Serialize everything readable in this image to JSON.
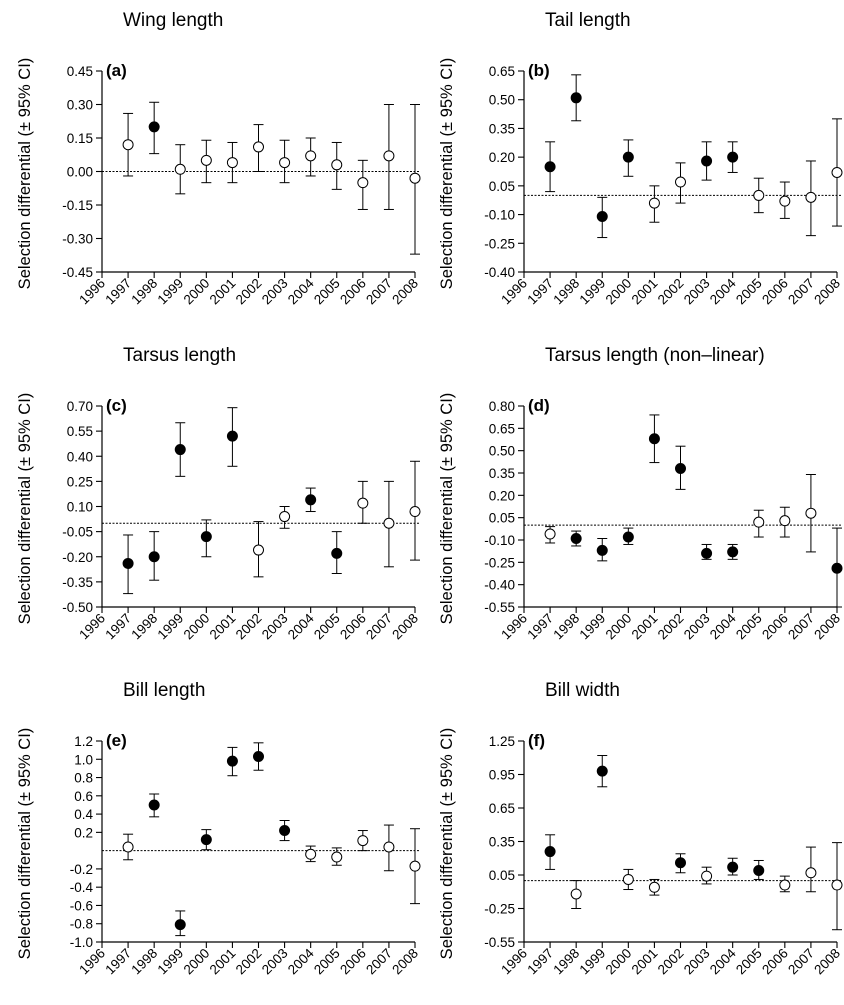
{
  "ylabel": "Selection differential (± 95% CI)",
  "chart_data": [
    {
      "type": "scatter",
      "panel": "(a)",
      "title": "Wing length",
      "ylabel": "Selection differential (± 95% CI)",
      "ylim": [
        -0.45,
        0.45
      ],
      "yticks": [
        -0.45,
        -0.3,
        -0.15,
        0.0,
        0.15,
        0.3,
        0.45
      ],
      "ytick_labels": [
        "-0.45",
        "-0.30",
        "-0.15",
        "0.00",
        "0.15",
        "0.30",
        "0.45"
      ],
      "xticks": [
        "1996",
        "1997",
        "1998",
        "1999",
        "2000",
        "2001",
        "2002",
        "2003",
        "2004",
        "2005",
        "2006",
        "2007",
        "2008"
      ],
      "reference_line": 0,
      "points": [
        {
          "x": 1997,
          "y": 0.12,
          "lo": -0.02,
          "hi": 0.26,
          "filled": false
        },
        {
          "x": 1998,
          "y": 0.2,
          "lo": 0.08,
          "hi": 0.31,
          "filled": true
        },
        {
          "x": 1999,
          "y": 0.01,
          "lo": -0.1,
          "hi": 0.12,
          "filled": false
        },
        {
          "x": 2000,
          "y": 0.05,
          "lo": -0.05,
          "hi": 0.14,
          "filled": false
        },
        {
          "x": 2001,
          "y": 0.04,
          "lo": -0.05,
          "hi": 0.13,
          "filled": false
        },
        {
          "x": 2002,
          "y": 0.11,
          "lo": 0.0,
          "hi": 0.21,
          "filled": false
        },
        {
          "x": 2003,
          "y": 0.04,
          "lo": -0.05,
          "hi": 0.14,
          "filled": false
        },
        {
          "x": 2004,
          "y": 0.07,
          "lo": -0.02,
          "hi": 0.15,
          "filled": false
        },
        {
          "x": 2005,
          "y": 0.03,
          "lo": -0.08,
          "hi": 0.13,
          "filled": false
        },
        {
          "x": 2006,
          "y": -0.05,
          "lo": -0.17,
          "hi": 0.05,
          "filled": false
        },
        {
          "x": 2007,
          "y": 0.07,
          "lo": -0.17,
          "hi": 0.3,
          "filled": false
        },
        {
          "x": 2008,
          "y": -0.03,
          "lo": -0.37,
          "hi": 0.3,
          "filled": false
        }
      ]
    },
    {
      "type": "scatter",
      "panel": "(b)",
      "title": "Tail length",
      "ylabel": "Selection differential (± 95% CI)",
      "ylim": [
        -0.4,
        0.65
      ],
      "yticks": [
        -0.4,
        -0.25,
        -0.1,
        0.05,
        0.2,
        0.35,
        0.5,
        0.65
      ],
      "ytick_labels": [
        "-0.40",
        "-0.25",
        "-0.10",
        "0.05",
        "0.20",
        "0.35",
        "0.50",
        "0.65"
      ],
      "xticks": [
        "1996",
        "1997",
        "1998",
        "1999",
        "2000",
        "2001",
        "2002",
        "2003",
        "2004",
        "2005",
        "2006",
        "2007",
        "2008"
      ],
      "reference_line": 0,
      "points": [
        {
          "x": 1997,
          "y": 0.15,
          "lo": 0.02,
          "hi": 0.28,
          "filled": true
        },
        {
          "x": 1998,
          "y": 0.51,
          "lo": 0.39,
          "hi": 0.63,
          "filled": true
        },
        {
          "x": 1999,
          "y": -0.11,
          "lo": -0.22,
          "hi": -0.01,
          "filled": true
        },
        {
          "x": 2000,
          "y": 0.2,
          "lo": 0.1,
          "hi": 0.29,
          "filled": true
        },
        {
          "x": 2001,
          "y": -0.04,
          "lo": -0.14,
          "hi": 0.05,
          "filled": false
        },
        {
          "x": 2002,
          "y": 0.07,
          "lo": -0.04,
          "hi": 0.17,
          "filled": false
        },
        {
          "x": 2003,
          "y": 0.18,
          "lo": 0.08,
          "hi": 0.28,
          "filled": true
        },
        {
          "x": 2004,
          "y": 0.2,
          "lo": 0.12,
          "hi": 0.28,
          "filled": true
        },
        {
          "x": 2005,
          "y": 0.0,
          "lo": -0.09,
          "hi": 0.09,
          "filled": false
        },
        {
          "x": 2006,
          "y": -0.03,
          "lo": -0.12,
          "hi": 0.07,
          "filled": false
        },
        {
          "x": 2007,
          "y": -0.01,
          "lo": -0.21,
          "hi": 0.18,
          "filled": false
        },
        {
          "x": 2008,
          "y": 0.12,
          "lo": -0.16,
          "hi": 0.4,
          "filled": false
        }
      ]
    },
    {
      "type": "scatter",
      "panel": "(c)",
      "title": "Tarsus length",
      "ylabel": "Selection differential (± 95% CI)",
      "ylim": [
        -0.5,
        0.7
      ],
      "yticks": [
        -0.5,
        -0.35,
        -0.2,
        -0.05,
        0.1,
        0.25,
        0.4,
        0.55,
        0.7
      ],
      "ytick_labels": [
        "-0.50",
        "-0.35",
        "-0.20",
        "-0.05",
        "0.10",
        "0.25",
        "0.40",
        "0.55",
        "0.70"
      ],
      "xticks": [
        "1996",
        "1997",
        "1998",
        "1999",
        "2000",
        "2001",
        "2002",
        "2003",
        "2004",
        "2005",
        "2006",
        "2007",
        "2008"
      ],
      "reference_line": 0,
      "points": [
        {
          "x": 1997,
          "y": -0.24,
          "lo": -0.42,
          "hi": -0.07,
          "filled": true
        },
        {
          "x": 1998,
          "y": -0.2,
          "lo": -0.34,
          "hi": -0.05,
          "filled": true
        },
        {
          "x": 1999,
          "y": 0.44,
          "lo": 0.28,
          "hi": 0.6,
          "filled": true
        },
        {
          "x": 2000,
          "y": -0.08,
          "lo": -0.2,
          "hi": 0.02,
          "filled": true
        },
        {
          "x": 2001,
          "y": 0.52,
          "lo": 0.34,
          "hi": 0.69,
          "filled": true
        },
        {
          "x": 2002,
          "y": -0.16,
          "lo": -0.32,
          "hi": 0.01,
          "filled": false
        },
        {
          "x": 2003,
          "y": 0.04,
          "lo": -0.03,
          "hi": 0.1,
          "filled": false
        },
        {
          "x": 2004,
          "y": 0.14,
          "lo": 0.07,
          "hi": 0.21,
          "filled": true
        },
        {
          "x": 2005,
          "y": -0.18,
          "lo": -0.3,
          "hi": -0.05,
          "filled": true
        },
        {
          "x": 2006,
          "y": 0.12,
          "lo": 0.0,
          "hi": 0.25,
          "filled": false
        },
        {
          "x": 2007,
          "y": 0.0,
          "lo": -0.26,
          "hi": 0.25,
          "filled": false
        },
        {
          "x": 2008,
          "y": 0.07,
          "lo": -0.22,
          "hi": 0.37,
          "filled": false
        }
      ]
    },
    {
      "type": "scatter",
      "panel": "(d)",
      "title": "Tarsus length (non–linear)",
      "ylabel": "Selection differential (± 95% CI)",
      "ylim": [
        -0.55,
        0.8
      ],
      "yticks": [
        -0.55,
        -0.4,
        -0.25,
        -0.1,
        0.05,
        0.2,
        0.35,
        0.5,
        0.65,
        0.8
      ],
      "ytick_labels": [
        "-0.55",
        "-0.40",
        "-0.25",
        "-0.10",
        "0.05",
        "0.20",
        "0.35",
        "0.50",
        "0.65",
        "0.80"
      ],
      "xticks": [
        "1996",
        "1997",
        "1998",
        "1999",
        "2000",
        "2001",
        "2002",
        "2003",
        "2004",
        "2005",
        "2006",
        "2007",
        "2008"
      ],
      "reference_line": 0,
      "points": [
        {
          "x": 1997,
          "y": -0.06,
          "lo": -0.12,
          "hi": -0.01,
          "filled": false
        },
        {
          "x": 1998,
          "y": -0.09,
          "lo": -0.14,
          "hi": -0.04,
          "filled": true
        },
        {
          "x": 1999,
          "y": -0.17,
          "lo": -0.24,
          "hi": -0.09,
          "filled": true
        },
        {
          "x": 2000,
          "y": -0.08,
          "lo": -0.13,
          "hi": -0.02,
          "filled": true
        },
        {
          "x": 2001,
          "y": 0.58,
          "lo": 0.42,
          "hi": 0.74,
          "filled": true
        },
        {
          "x": 2002,
          "y": 0.38,
          "lo": 0.24,
          "hi": 0.53,
          "filled": true
        },
        {
          "x": 2003,
          "y": -0.19,
          "lo": -0.23,
          "hi": -0.13,
          "filled": true
        },
        {
          "x": 2004,
          "y": -0.18,
          "lo": -0.23,
          "hi": -0.13,
          "filled": true
        },
        {
          "x": 2005,
          "y": 0.02,
          "lo": -0.08,
          "hi": 0.1,
          "filled": false
        },
        {
          "x": 2006,
          "y": 0.03,
          "lo": -0.08,
          "hi": 0.12,
          "filled": false
        },
        {
          "x": 2007,
          "y": 0.08,
          "lo": -0.18,
          "hi": 0.34,
          "filled": false
        },
        {
          "x": 2008,
          "y": -0.29,
          "lo": -0.55,
          "hi": -0.02,
          "filled": true
        }
      ]
    },
    {
      "type": "scatter",
      "panel": "(e)",
      "title": "Bill length",
      "ylabel": "Selection differential (± 95% CI)",
      "ylim": [
        -1.0,
        1.2
      ],
      "yticks": [
        -1.0,
        -0.8,
        -0.6,
        -0.4,
        -0.2,
        0.2,
        0.4,
        0.6,
        0.8,
        1.0,
        1.2
      ],
      "ytick_labels": [
        "-1.0",
        "-0.8",
        "-0.6",
        "-0.4",
        "-0.2",
        "0.2",
        "0.4",
        "0.6",
        "0.8",
        "1.0",
        "1.2"
      ],
      "xticks": [
        "1996",
        "1997",
        "1998",
        "1999",
        "2000",
        "2001",
        "2002",
        "2003",
        "2004",
        "2005",
        "2006",
        "2007",
        "2008"
      ],
      "reference_line": 0,
      "points": [
        {
          "x": 1997,
          "y": 0.04,
          "lo": -0.1,
          "hi": 0.18,
          "filled": false
        },
        {
          "x": 1998,
          "y": 0.5,
          "lo": 0.37,
          "hi": 0.62,
          "filled": true
        },
        {
          "x": 1999,
          "y": -0.81,
          "lo": -0.93,
          "hi": -0.66,
          "filled": true
        },
        {
          "x": 2000,
          "y": 0.12,
          "lo": 0.01,
          "hi": 0.23,
          "filled": true
        },
        {
          "x": 2001,
          "y": 0.98,
          "lo": 0.82,
          "hi": 1.13,
          "filled": true
        },
        {
          "x": 2002,
          "y": 1.03,
          "lo": 0.88,
          "hi": 1.18,
          "filled": true
        },
        {
          "x": 2003,
          "y": 0.22,
          "lo": 0.11,
          "hi": 0.33,
          "filled": true
        },
        {
          "x": 2004,
          "y": -0.04,
          "lo": -0.12,
          "hi": 0.05,
          "filled": false
        },
        {
          "x": 2005,
          "y": -0.07,
          "lo": -0.16,
          "hi": 0.03,
          "filled": false
        },
        {
          "x": 2006,
          "y": 0.11,
          "lo": 0.0,
          "hi": 0.22,
          "filled": false
        },
        {
          "x": 2007,
          "y": 0.04,
          "lo": -0.22,
          "hi": 0.28,
          "filled": false
        },
        {
          "x": 2008,
          "y": -0.17,
          "lo": -0.58,
          "hi": 0.24,
          "filled": false
        }
      ]
    },
    {
      "type": "scatter",
      "panel": "(f)",
      "title": "Bill width",
      "ylabel": "Selection differential (± 95% CI)",
      "ylim": [
        -0.55,
        1.25
      ],
      "yticks": [
        -0.55,
        -0.25,
        0.05,
        0.35,
        0.65,
        0.95,
        1.25
      ],
      "ytick_labels": [
        "-0.55",
        "-0.25",
        "0.05",
        "0.35",
        "0.65",
        "0.95",
        "1.25"
      ],
      "xticks": [
        "1996",
        "1997",
        "1998",
        "1999",
        "2000",
        "2001",
        "2002",
        "2003",
        "2004",
        "2005",
        "2006",
        "2007",
        "2008"
      ],
      "reference_line": 0,
      "points": [
        {
          "x": 1997,
          "y": 0.26,
          "lo": 0.1,
          "hi": 0.41,
          "filled": true
        },
        {
          "x": 1998,
          "y": -0.12,
          "lo": -0.25,
          "hi": 0.0,
          "filled": false
        },
        {
          "x": 1999,
          "y": 0.98,
          "lo": 0.84,
          "hi": 1.12,
          "filled": true
        },
        {
          "x": 2000,
          "y": 0.01,
          "lo": -0.08,
          "hi": 0.1,
          "filled": false
        },
        {
          "x": 2001,
          "y": -0.06,
          "lo": -0.13,
          "hi": 0.01,
          "filled": false
        },
        {
          "x": 2002,
          "y": 0.16,
          "lo": 0.07,
          "hi": 0.24,
          "filled": true
        },
        {
          "x": 2003,
          "y": 0.04,
          "lo": -0.03,
          "hi": 0.12,
          "filled": false
        },
        {
          "x": 2004,
          "y": 0.12,
          "lo": 0.05,
          "hi": 0.2,
          "filled": true
        },
        {
          "x": 2005,
          "y": 0.09,
          "lo": 0.01,
          "hi": 0.18,
          "filled": true
        },
        {
          "x": 2006,
          "y": -0.04,
          "lo": -0.1,
          "hi": 0.04,
          "filled": false
        },
        {
          "x": 2007,
          "y": 0.07,
          "lo": -0.1,
          "hi": 0.3,
          "filled": false
        },
        {
          "x": 2008,
          "y": -0.04,
          "lo": -0.44,
          "hi": 0.34,
          "filled": false
        }
      ]
    }
  ]
}
